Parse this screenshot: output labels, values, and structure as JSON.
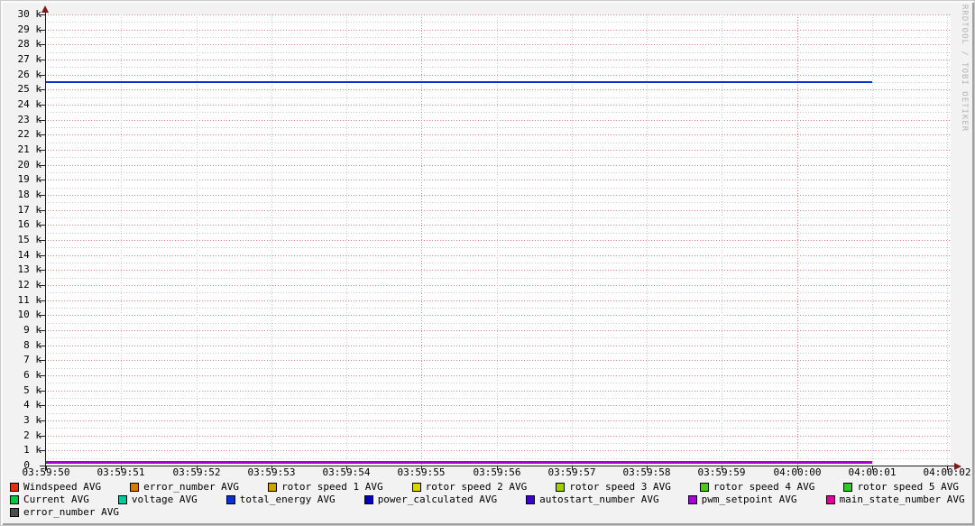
{
  "watermark": "RRDTOOL / TOBI OETIKER",
  "colors": {
    "background": "#f2f2f2",
    "canvas": "#ffffff",
    "grid_major": "#e08078",
    "grid_minor": "#c9c9c9",
    "axis": "#1c1c1c",
    "arrow": "#7f1a1a"
  },
  "axes": {
    "y_labels": [
      "30 k",
      "29 k",
      "28 k",
      "27 k",
      "26 k",
      "25 k",
      "24 k",
      "23 k",
      "22 k",
      "21 k",
      "20 k",
      "19 k",
      "18 k",
      "17 k",
      "16 k",
      "15 k",
      "14 k",
      "13 k",
      "12 k",
      "11 k",
      "10 k",
      "9 k",
      "8 k",
      "7 k",
      "6 k",
      "5 k",
      "4 k",
      "3 k",
      "2 k",
      "1 k",
      "0"
    ],
    "x_labels": [
      "03:59:50",
      "03:59:51",
      "03:59:52",
      "03:59:53",
      "03:59:54",
      "03:59:55",
      "03:59:56",
      "03:59:57",
      "03:59:58",
      "03:59:59",
      "04:00:00",
      "04:00:01",
      "04:00:02"
    ],
    "x_major_gridlines": [
      "03:59:55",
      "04:00:00"
    ]
  },
  "chart_data": {
    "type": "line",
    "title": "",
    "xlabel": "",
    "ylabel": "",
    "ylim": [
      0,
      30000
    ],
    "y_major_step": 1000,
    "y_minor_step": 500,
    "x_tick_labels": [
      "03:59:50",
      "03:59:51",
      "03:59:52",
      "03:59:53",
      "03:59:54",
      "03:59:55",
      "03:59:56",
      "03:59:57",
      "03:59:58",
      "03:59:59",
      "04:00:00",
      "04:00:01",
      "04:00:02"
    ],
    "grid": true,
    "legend_position": "bottom",
    "series": [
      {
        "name": "total_energy AVG",
        "color": "#0832d0",
        "constant_value": 25500,
        "x_start": "03:59:50",
        "x_end": "04:00:01",
        "thickness": 2
      },
      {
        "name": "pwm_setpoint AVG",
        "color": "#a800d4",
        "constant_value": 200,
        "x_start": "03:59:50",
        "x_end": "04:00:01",
        "thickness": 3
      }
    ]
  },
  "legend": {
    "rows": [
      [
        {
          "label": "Windspeed AVG",
          "color": "#e03210"
        },
        {
          "label": "error_number AVG",
          "color": "#dc7a00"
        },
        {
          "label": "rotor speed 1 AVG",
          "color": "#cfa200"
        },
        {
          "label": "rotor speed 2 AVG",
          "color": "#d8d800"
        },
        {
          "label": "rotor speed 3 AVG",
          "color": "#a0cf00"
        },
        {
          "label": "rotor speed 4 AVG",
          "color": "#4ec91c"
        },
        {
          "label": "rotor speed 5 AVG",
          "color": "#2eca27"
        }
      ],
      [
        {
          "label": "Current AVG",
          "color": "#00c93c"
        },
        {
          "label": "voltage AVG",
          "color": "#00c9a0"
        },
        {
          "label": "total_energy AVG",
          "color": "#0832d0"
        },
        {
          "label": "power_calculated AVG",
          "color": "#0000bf"
        },
        {
          "label": "autostart_number AVG",
          "color": "#3b00c9"
        },
        {
          "label": "pwm_setpoint AVG",
          "color": "#a800d4"
        },
        {
          "label": "main_state_number AVG",
          "color": "#e000a0"
        }
      ],
      [
        {
          "label": "error_number AVG",
          "color": "#4d4d4d"
        }
      ]
    ]
  }
}
